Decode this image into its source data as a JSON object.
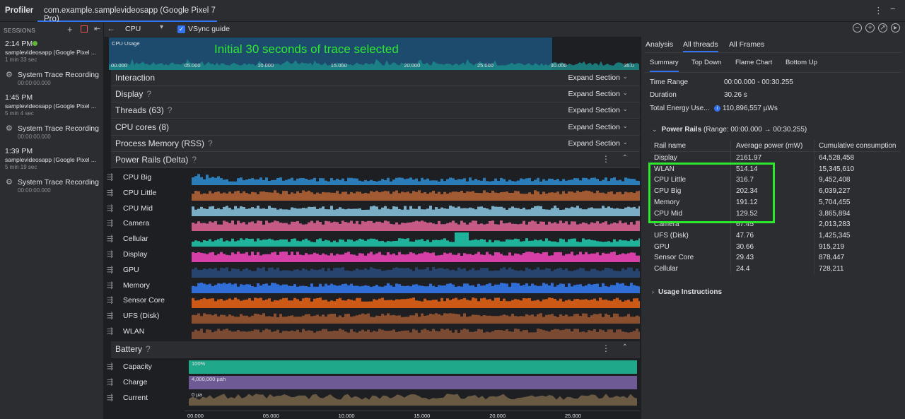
{
  "app": {
    "title": "Profiler",
    "tab": "com.example.samplevideosapp (Google Pixel 7 Pro)"
  },
  "sessions": {
    "header": "SESSIONS",
    "items": [
      {
        "time": "2:14 PM",
        "app": "samplevideosapp (Google Pixel ...",
        "duration": "1 min 33 sec",
        "recording": "System Trace Recording",
        "timestamp": "00:00:00.000",
        "live": true
      },
      {
        "time": "1:45 PM",
        "app": "samplevideosapp (Google Pixel ...",
        "duration": "5 min 4 sec",
        "recording": "System Trace Recording",
        "timestamp": "00:00:00.000",
        "live": false
      },
      {
        "time": "1:39 PM",
        "app": "samplevideosapp (Google Pixel ...",
        "duration": "5 min 19 sec",
        "recording": "System Trace Recording",
        "timestamp": "00:00:00.000",
        "live": false
      }
    ]
  },
  "toolbar": {
    "profiler": "CPU",
    "vsync_label": "VSync guide",
    "vsync_checked": true
  },
  "overview": {
    "label": "CPU Usage",
    "annotation": "Initial 30 seconds of trace selected",
    "ticks": [
      "00.000",
      "05.000",
      "10.000",
      "15.000",
      "20.000",
      "25.000",
      "30.000",
      "35.0"
    ]
  },
  "sections": [
    {
      "title": "Interaction",
      "help": false,
      "action": "Expand Section"
    },
    {
      "title": "Display",
      "help": true,
      "action": "Expand Section"
    },
    {
      "title": "Threads (63)",
      "help": true,
      "action": "Expand Section"
    },
    {
      "title": "CPU cores (8)",
      "help": false,
      "action": "Expand Section"
    },
    {
      "title": "Process Memory (RSS)",
      "help": true,
      "action": "Expand Section"
    }
  ],
  "power_rails": {
    "title": "Power Rails (Delta)",
    "tracks": [
      {
        "name": "CPU Big",
        "color": "#2a7db8"
      },
      {
        "name": "CPU Little",
        "color": "#a25a32"
      },
      {
        "name": "CPU Mid",
        "color": "#7aaec7"
      },
      {
        "name": "Camera",
        "color": "#c55a86"
      },
      {
        "name": "Cellular",
        "color": "#1fb39c"
      },
      {
        "name": "Display",
        "color": "#d63fa6"
      },
      {
        "name": "GPU",
        "color": "#27446e"
      },
      {
        "name": "Memory",
        "color": "#2e6ed6"
      },
      {
        "name": "Sensor Core",
        "color": "#cc5a16"
      },
      {
        "name": "UFS (Disk)",
        "color": "#8a4f2e"
      },
      {
        "name": "WLAN",
        "color": "#7a4a32"
      }
    ]
  },
  "battery": {
    "title": "Battery",
    "tracks": [
      {
        "name": "Capacity",
        "value_label": "100%",
        "color": "#1fa98a"
      },
      {
        "name": "Charge",
        "value_label": "4,000,000 µah",
        "color": "#6e5b96"
      },
      {
        "name": "Current",
        "value_label": "0 µa",
        "color": "#6b5a43"
      }
    ]
  },
  "axis_ticks": [
    "00.000",
    "05.000",
    "10.000",
    "15.000",
    "20.000",
    "25.000"
  ],
  "analysis": {
    "tabs": [
      "Analysis",
      "All threads",
      "All Frames"
    ],
    "active_tab": "All threads",
    "subtabs": [
      "Summary",
      "Top Down",
      "Flame Chart",
      "Bottom Up"
    ],
    "active_subtab": "Summary",
    "time_range_label": "Time Range",
    "time_range": "00:00.000 - 00:30.255",
    "duration_label": "Duration",
    "duration": "30.26 s",
    "energy_label": "Total Energy Use...",
    "energy": "110,896,557 µWs",
    "power_rails_title": "Power Rails",
    "power_rails_range": "(Range: 00:00.000 → 00:30.255)",
    "columns": [
      "Rail name",
      "Average power (mW)",
      "Cumulative consumption"
    ],
    "rows": [
      [
        "Display",
        "2161.97",
        "64,528,458"
      ],
      [
        "WLAN",
        "514.14",
        "15,345,610"
      ],
      [
        "CPU Little",
        "316.7",
        "9,452,408"
      ],
      [
        "CPU Big",
        "202.34",
        "6,039,227"
      ],
      [
        "Memory",
        "191.12",
        "5,704,455"
      ],
      [
        "CPU Mid",
        "129.52",
        "3,865,894"
      ],
      [
        "Camera",
        "67.45",
        "2,013,283"
      ],
      [
        "UFS (Disk)",
        "47.76",
        "1,425,345"
      ],
      [
        "GPU",
        "30.66",
        "915,219"
      ],
      [
        "Sensor Core",
        "29.43",
        "878,447"
      ],
      [
        "Cellular",
        "24.4",
        "728,211"
      ]
    ],
    "usage_instructions": "Usage Instructions"
  }
}
